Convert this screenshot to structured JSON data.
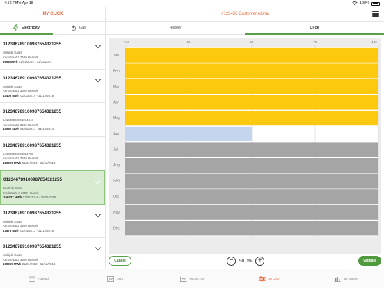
{
  "status_bar": {
    "time": "4:52 PM",
    "date": "Fri Apr 18",
    "battery": "100%"
  },
  "header": {
    "left_title": "MY CLICK",
    "center_title": "#123456 Customer Alpha"
  },
  "energy_tabs": [
    {
      "label": "Electricity",
      "icon": "bolt-icon",
      "active": true
    },
    {
      "label": "Gas",
      "icon": "flame-icon",
      "active": false
    }
  ],
  "accounts": [
    {
      "id": "012346789100987654321255",
      "line1": "Multiple EANs",
      "line2": "Kerkstraat 2 3500 Hasselt",
      "value": "8658 MWh",
      "period": "01/01/2014 - 31/12/2014",
      "selected": false
    },
    {
      "id": "012346789100987654321255",
      "line1": "Multiple EANs",
      "line2": "Kerkstraat 2 3500 Hasselt",
      "value": "14400 MWh",
      "period": "01/01/2014 - 31/12/2018",
      "selected": false
    },
    {
      "id": "012346789100987654321255",
      "line1": "541449060001974048",
      "line2": "Kerkstraat 2 3500 Hasselt",
      "value": "13080 MWh",
      "period": "01/01/2014 - 31/12/2014",
      "selected": false
    },
    {
      "id": "012346789100987654321255",
      "line1": "541449060000821788",
      "line2": "Kerkstraat 2 3500 Hasselt",
      "value": "180000 MWh",
      "period": "01/01/2014 - 31/12/2018",
      "selected": false
    },
    {
      "id": "012346789100987654321255",
      "line1": "Multiple EANs",
      "line2": "Kerkstraat 2 3500 Hasselt",
      "value": "106537 MWh",
      "period": "01/01/2014 - 30/06/2019",
      "selected": true
    },
    {
      "id": "012346789100987654321255",
      "line1": "Multiple EANs",
      "line2": "Kerkstraat 2 3500 Hasselt",
      "value": "47878 MWh",
      "period": "01/04/2013 - 31/12/2016",
      "selected": false
    },
    {
      "id": "012346789100987654321255",
      "line1": "Multiple EANs",
      "line2": "Kerkstraat 2 3500 Hasselt",
      "value": "100395 MWh",
      "period": "01/01/2012 - 31/12/2016",
      "selected": false
    }
  ],
  "view_tabs": [
    {
      "label": "History",
      "active": false
    },
    {
      "label": "Click",
      "active": true
    }
  ],
  "chart_data": {
    "type": "bar",
    "orientation": "horizontal",
    "categories": [
      "Jan",
      "Feb",
      "Mar",
      "Apr",
      "May",
      "Jun",
      "Jul",
      "Aug",
      "Sep",
      "Oct",
      "Nov",
      "Dec"
    ],
    "values": [
      100,
      100,
      100,
      100,
      100,
      50,
      100,
      100,
      100,
      100,
      100,
      100
    ],
    "bar_status": [
      "clicked",
      "clicked",
      "clicked",
      "clicked",
      "clicked",
      "selected",
      "open",
      "open",
      "open",
      "open",
      "open",
      "open"
    ],
    "xticks": [
      "% 0",
      "25",
      "50",
      "75",
      "100"
    ],
    "xlim": [
      0,
      100
    ],
    "colors": {
      "clicked": "#fdc90f",
      "selected": "#c5d5ee",
      "open": "#a5a5a5"
    }
  },
  "controls": {
    "cancel_label": "Cancel",
    "validate_label": "Validate",
    "zoom_value": "50.0%",
    "zoom_minus": "−",
    "zoom_plus": "+"
  },
  "bottom_nav": [
    {
      "label": "Forward",
      "icon": "calendar-icon",
      "active": false
    },
    {
      "label": "Spot",
      "icon": "spot-chart-icon",
      "active": false
    },
    {
      "label": "Market info",
      "icon": "line-chart-icon",
      "active": false
    },
    {
      "label": "My Click",
      "icon": "sliders-icon",
      "active": true
    },
    {
      "label": "My Energy",
      "icon": "bar-chart-icon",
      "active": false
    }
  ]
}
